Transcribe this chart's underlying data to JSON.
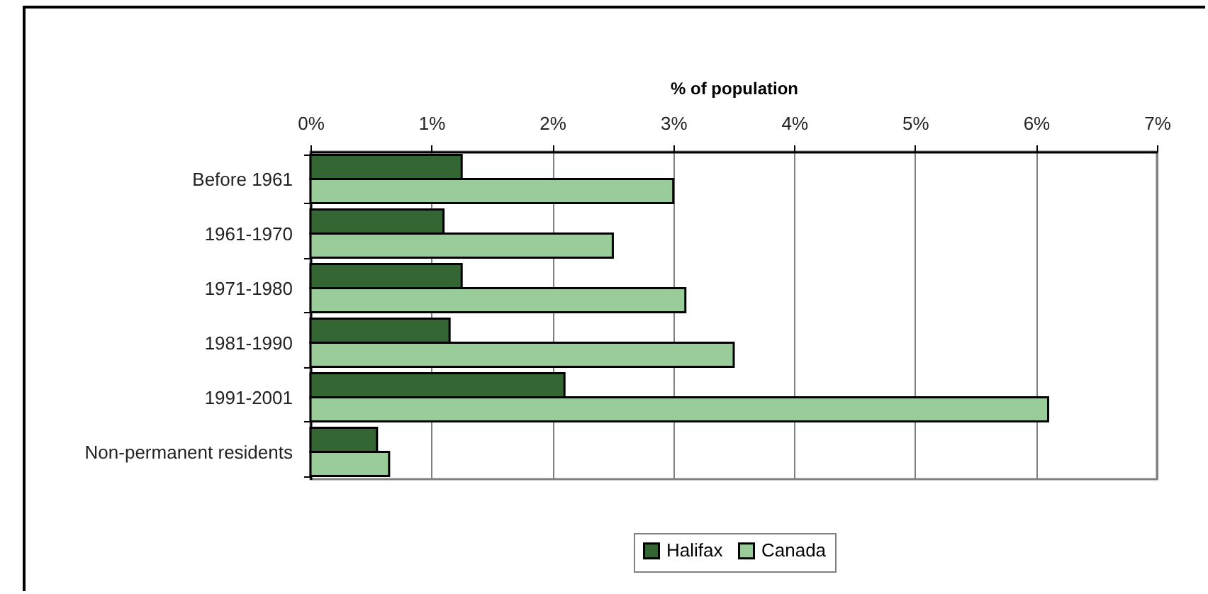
{
  "chart_data": {
    "type": "bar",
    "orientation": "horizontal",
    "xlabel": "% of population",
    "categories": [
      "Before 1961",
      "1961-1970",
      "1971-1980",
      "1981-1990",
      "1991-2001",
      "Non-permanent residents"
    ],
    "series": [
      {
        "name": "Halifax",
        "color": "#336633",
        "values": [
          1.25,
          1.1,
          1.25,
          1.15,
          2.1,
          0.55
        ]
      },
      {
        "name": "Canada",
        "color": "#99cc99",
        "values": [
          3.0,
          2.5,
          3.1,
          3.5,
          6.1,
          0.65
        ]
      }
    ],
    "xlim": [
      0,
      7
    ],
    "xticks": [
      {
        "value": 0,
        "label": "0%"
      },
      {
        "value": 1,
        "label": "1%"
      },
      {
        "value": 2,
        "label": "2%"
      },
      {
        "value": 3,
        "label": "3%"
      },
      {
        "value": 4,
        "label": "4%"
      },
      {
        "value": 5,
        "label": "5%"
      },
      {
        "value": 6,
        "label": "6%"
      },
      {
        "value": 7,
        "label": "7%"
      }
    ],
    "grid": "x",
    "legend": "bottom"
  }
}
